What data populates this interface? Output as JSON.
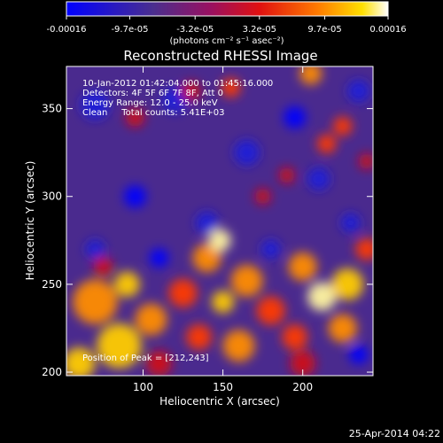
{
  "colorbar": {
    "tick_labels": [
      "-0.00016",
      "-9.7e-05",
      "-3.2e-05",
      "3.2e-05",
      "9.7e-05",
      "0.00016"
    ],
    "tick_values": [
      -0.00016,
      -9.7e-05,
      -3.2e-05,
      3.2e-05,
      9.7e-05,
      0.00016
    ],
    "range": [
      -0.00016,
      0.00016
    ],
    "unit_label": "(photons cm⁻² s⁻¹ asec⁻²)",
    "colors": [
      "#0000ff",
      "#5a2d8c",
      "#c4003a",
      "#ff5a00",
      "#ffd800",
      "#ffffff"
    ]
  },
  "title": "Reconstructed RHESSI Image",
  "info": {
    "time_range": "10-Jan-2012 01:42:04.000 to 01:45:16.000",
    "detectors": "Detectors: 4F 5F 6F 7F 8F, Att 0",
    "energy": "Energy Range: 12.0 - 25.0 keV",
    "clean": "Clean     Total counts: 5.41E+03"
  },
  "peak_label": "Position of Peak = [212,243]",
  "footer_date": "25-Apr-2014 04:22",
  "chart_data": {
    "type": "heatmap",
    "title": "Reconstructed RHESSI Image",
    "xlabel": "Heliocentric X (arcsec)",
    "ylabel": "Heliocentric Y (arcsec)",
    "xlim": [
      52,
      244
    ],
    "ylim": [
      198,
      374
    ],
    "x_ticks": [
      100,
      150,
      200
    ],
    "y_ticks": [
      200,
      250,
      300,
      350
    ],
    "peak_position": [
      212,
      243
    ],
    "value_range": [
      -0.00016,
      0.00016
    ]
  }
}
